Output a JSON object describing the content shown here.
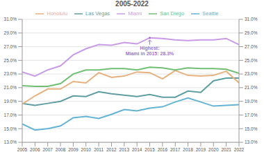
{
  "chart_data": {
    "type": "line",
    "title": "2005-2022",
    "x": [
      2005,
      2006,
      2007,
      2008,
      2009,
      2010,
      2011,
      2012,
      2013,
      2014,
      2015,
      2016,
      2017,
      2018,
      2019,
      2020,
      2021,
      2022
    ],
    "xlim": [
      2005,
      2022
    ],
    "xticks": [
      2005,
      2006,
      2007,
      2008,
      2009,
      2010,
      2011,
      2012,
      2013,
      2014,
      2015,
      2016,
      2017,
      2018,
      2019,
      2020,
      2021,
      2022
    ],
    "ylim": [
      13,
      31
    ],
    "yticks": [
      {
        "value": 13,
        "label": "13.0%"
      },
      {
        "value": 15,
        "label": "15.0%"
      },
      {
        "value": 17,
        "label": "17.0%"
      },
      {
        "value": 19,
        "label": "19.0%"
      },
      {
        "value": 21,
        "label": "21.0%"
      },
      {
        "value": 23,
        "label": "23.0%"
      },
      {
        "value": 25,
        "label": "25.0%"
      },
      {
        "value": 27,
        "label": "27.0%"
      },
      {
        "value": 29,
        "label": "29.0%"
      },
      {
        "value": 31,
        "label": "31.0%"
      }
    ],
    "y2lim": [
      13,
      31
    ],
    "y2ticks": [
      {
        "value": 13,
        "label": "13.0%"
      },
      {
        "value": 15,
        "label": "15.0%"
      },
      {
        "value": 17,
        "label": "17.0%"
      },
      {
        "value": 19,
        "label": "19.0%"
      },
      {
        "value": 21,
        "label": "21.0%"
      },
      {
        "value": 23,
        "label": "23.0%"
      },
      {
        "value": 25,
        "label": "25.0%"
      },
      {
        "value": 27,
        "label": "27.0%"
      },
      {
        "value": 29,
        "label": "29.0%"
      },
      {
        "value": 31,
        "label": "31.0%"
      }
    ],
    "grid": true,
    "legend": "top",
    "series": [
      {
        "name": "Las Vegas",
        "color": "#5f9ea0",
        "values": [
          18.7,
          18.4,
          18.7,
          19.0,
          19.8,
          19.7,
          20.4,
          20.1,
          19.9,
          19.7,
          20.0,
          19.6,
          19.6,
          20.5,
          20.3,
          22.0,
          22.4,
          22.4
        ]
      },
      {
        "name": "Honolulu",
        "color": "#e6b17e",
        "values": [
          18.6,
          19.8,
          20.8,
          20.8,
          21.9,
          21.7,
          23.2,
          22.5,
          22.7,
          23.3,
          23.2,
          22.3,
          23.5,
          22.8,
          22.7,
          22.8,
          23.4,
          21.7
        ]
      },
      {
        "name": "San Diego",
        "color": "#6fbf73",
        "values": [
          21.3,
          21.2,
          21.2,
          21.6,
          23.0,
          23.6,
          23.6,
          23.8,
          23.8,
          23.6,
          24.0,
          23.9,
          23.6,
          23.9,
          23.8,
          23.8,
          23.7,
          23.1
        ]
      },
      {
        "name": "Seattle",
        "color": "#62b3d6",
        "values": [
          15.7,
          14.8,
          15.0,
          15.4,
          16.6,
          16.8,
          16.5,
          17.1,
          17.8,
          17.6,
          18.0,
          18.2,
          18.9,
          19.5,
          18.9,
          18.3,
          18.4,
          18.5
        ]
      },
      {
        "name": "Miami",
        "color": "#c89be6",
        "values": [
          23.3,
          22.7,
          23.6,
          24.2,
          25.8,
          26.7,
          27.3,
          27.2,
          27.6,
          27.4,
          28.3,
          28.2,
          28.0,
          27.9,
          28.0,
          28.0,
          28.2,
          27.3
        ]
      }
    ],
    "annotation": {
      "text": [
        "Highest:",
        "Miami in 2015: 28.3%"
      ],
      "x": 2015,
      "y": 28.3,
      "color": "#a56fd1"
    }
  }
}
